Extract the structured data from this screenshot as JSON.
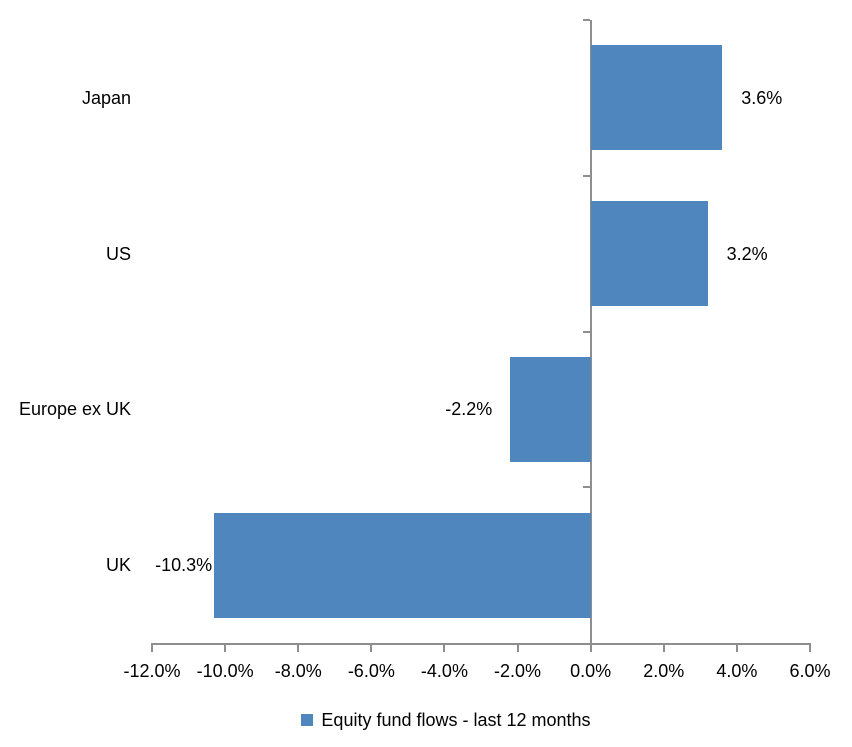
{
  "chart_data": {
    "type": "bar",
    "orientation": "horizontal",
    "categories": [
      "Japan",
      "US",
      "Europe ex UK",
      "UK"
    ],
    "series": [
      {
        "name": "Equity fund flows - last 12 months",
        "values": [
          3.6,
          3.2,
          -2.2,
          -10.3
        ],
        "labels": [
          "3.6%",
          "3.2%",
          "-2.2%",
          "-10.3%"
        ],
        "color": "#4f86bd"
      }
    ],
    "xlim": [
      -12,
      6
    ],
    "x_tick_step": 2,
    "x_tick_labels": [
      "-12.0%",
      "-10.0%",
      "-8.0%",
      "-6.0%",
      "-4.0%",
      "-2.0%",
      "0.0%",
      "2.0%",
      "4.0%",
      "6.0%"
    ],
    "grid": false,
    "legend_position": "bottom",
    "axis_color": "#8e8e8e",
    "text_color": "#000000",
    "background": "#ffffff"
  }
}
